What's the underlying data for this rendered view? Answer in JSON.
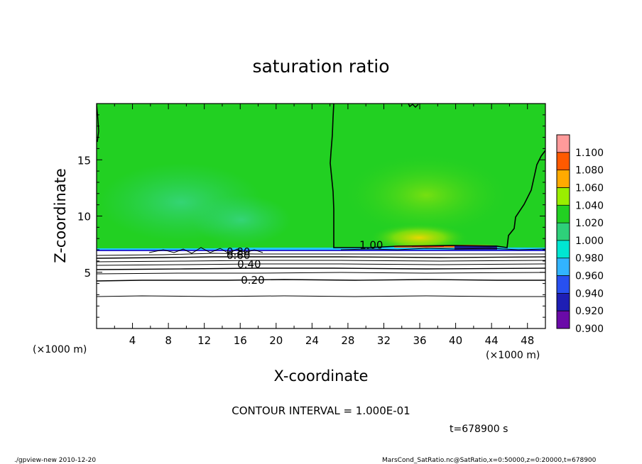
{
  "chart_data": {
    "type": "heatmap",
    "title": "saturation ratio",
    "xlabel": "X-coordinate",
    "ylabel": "Z-coordinate",
    "x_unit_label": "(×1000 m)",
    "x_unit_label_right": "(×1000 m)",
    "xlim": [
      0,
      50
    ],
    "ylim": [
      0,
      20
    ],
    "xticks": [
      4,
      8,
      12,
      16,
      20,
      24,
      28,
      32,
      36,
      40,
      44,
      48
    ],
    "yticks": [
      5,
      10,
      15
    ],
    "colorbar": {
      "levels": [
        "0.900",
        "0.920",
        "0.940",
        "0.960",
        "0.980",
        "1.000",
        "1.020",
        "1.040",
        "1.060",
        "1.080",
        "1.100"
      ],
      "colors": [
        "#6a0aa8",
        "#1e1eb4",
        "#2850f0",
        "#32b4ff",
        "#00e6d2",
        "#2ed07a",
        "#22d022",
        "#9aee00",
        "#ffaa00",
        "#ff5a00",
        "#ff9a9a"
      ]
    },
    "contour_labels": [
      {
        "text": "0.20",
        "x": 17.4,
        "y": 4.3
      },
      {
        "text": "0.40",
        "x": 17.0,
        "y": 5.7
      },
      {
        "text": "0.60",
        "x": 15.8,
        "y": 6.5
      },
      {
        "text": "0.80",
        "x": 15.8,
        "y": 6.8
      },
      {
        "text": "1.00",
        "x": 30.6,
        "y": 7.4
      }
    ],
    "field_summary": {
      "upper_region_value_approx": 1.0,
      "boundary_height_approx": 7.1,
      "lower_region_range": [
        0.0,
        0.9
      ]
    },
    "contour_interval_text": "CONTOUR INTERVAL = 1.000E-01",
    "time_text": "t=678900 s"
  },
  "footer": {
    "left": "./gpview-new  2010-12-20",
    "right": "MarsCond_SatRatio.nc@SatRatio,x=0:50000,z=0:20000,t=678900"
  }
}
